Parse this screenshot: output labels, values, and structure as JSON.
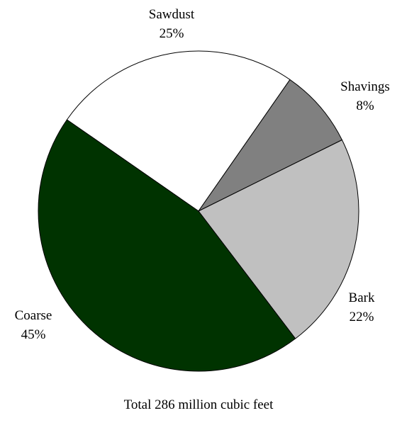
{
  "chart_data": {
    "type": "pie",
    "slices": [
      {
        "name": "Sawdust",
        "value": 25,
        "label": "25%",
        "color": "#ffffff"
      },
      {
        "name": "Shavings",
        "value": 8,
        "label": "8%",
        "color": "#808080"
      },
      {
        "name": "Bark",
        "value": 22,
        "label": "22%",
        "color": "#c0c0c0"
      },
      {
        "name": "Coarse",
        "value": 45,
        "label": "45%",
        "color": "#003300"
      }
    ],
    "start_angle_deg": -55.2,
    "direction": "clockwise",
    "edge_color": "#000000",
    "legend": "none"
  },
  "footer": {
    "text": "Total 286 million cubic feet"
  }
}
